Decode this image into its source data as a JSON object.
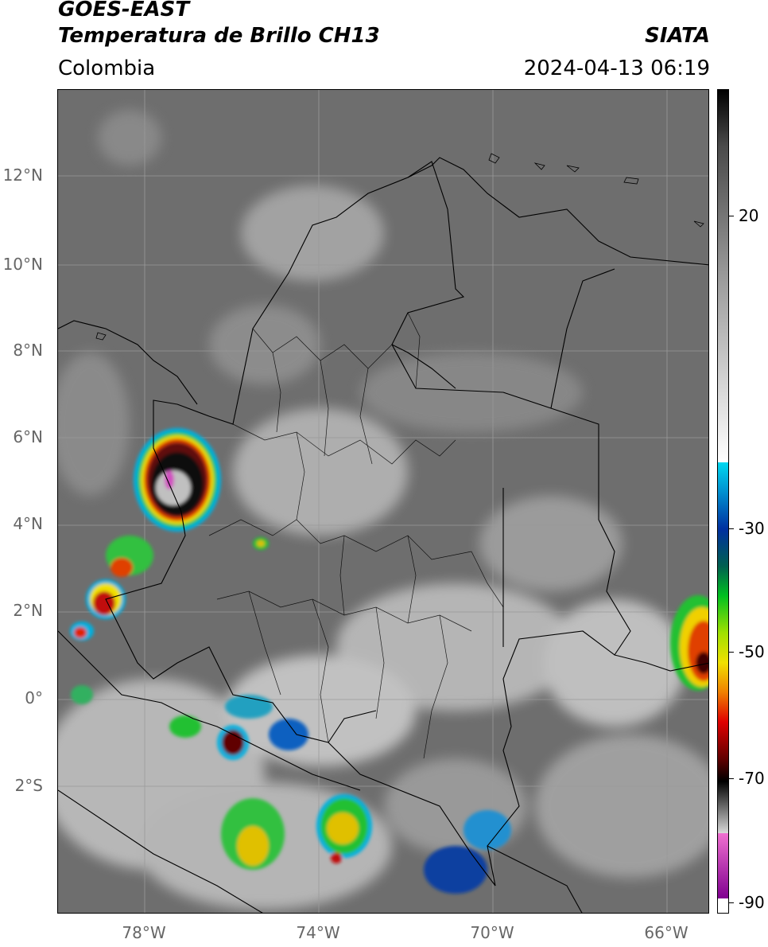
{
  "header": {
    "title_line1": "GOES-EAST",
    "title_line2": "Temperatura de Brillo CH13",
    "brand": "SIATA",
    "region": "Colombia",
    "datetime": "2024-04-13 06:19"
  },
  "map": {
    "lon_range": [
      -80,
      -64.8
    ],
    "lat_range": [
      -5.1,
      14.1
    ],
    "lat_ticks": [
      {
        "value": 12,
        "label": "12°N"
      },
      {
        "value": 10,
        "label": "10°N"
      },
      {
        "value": 8,
        "label": "8°N"
      },
      {
        "value": 6,
        "label": "6°N"
      },
      {
        "value": 4,
        "label": "4°N"
      },
      {
        "value": 2,
        "label": "2°N"
      },
      {
        "value": 0,
        "label": "0°"
      },
      {
        "value": -2,
        "label": "2°S"
      }
    ],
    "lon_ticks": [
      {
        "value": -78,
        "label": "78°W"
      },
      {
        "value": -74,
        "label": "74°W"
      },
      {
        "value": -70,
        "label": "70°W"
      },
      {
        "value": -66,
        "label": "66°W"
      }
    ],
    "grid": true,
    "colors": {
      "background": "#6e6e6e",
      "border": "#000000",
      "grid": "#9a9a9a"
    }
  },
  "colorbar": {
    "range": [
      -92,
      36
    ],
    "ticks": [
      {
        "value": 20,
        "label": "20"
      },
      {
        "value": -30,
        "label": "-30"
      },
      {
        "value": -50,
        "label": "-50"
      },
      {
        "value": -70,
        "label": "-70"
      },
      {
        "value": -90,
        "label": "-90"
      }
    ]
  }
}
